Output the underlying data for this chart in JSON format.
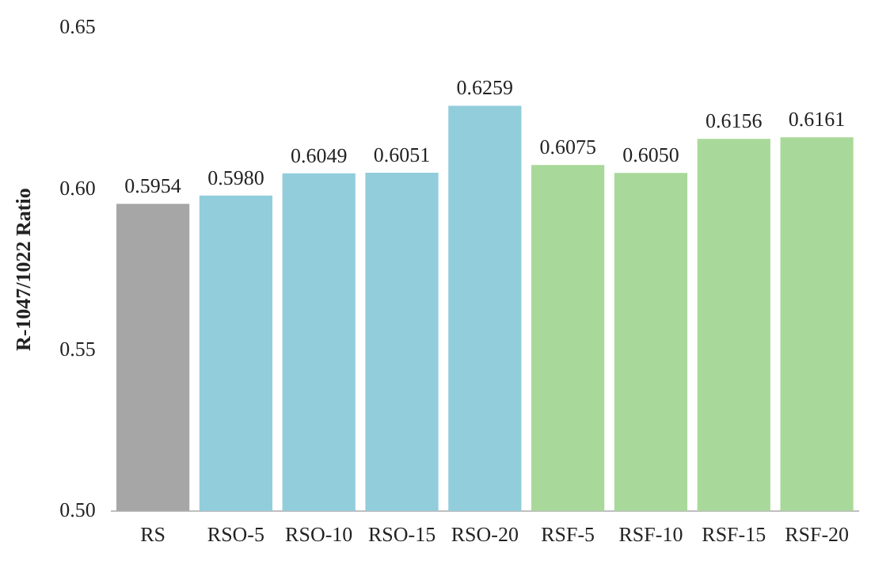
{
  "chart_data": {
    "type": "bar",
    "ylabel": "R-1047/1022 Ratio",
    "categories": [
      "RS",
      "RSO-5",
      "RSO-10",
      "RSO-15",
      "RSO-20",
      "RSF-5",
      "RSF-10",
      "RSF-15",
      "RSF-20"
    ],
    "values": [
      0.5954,
      0.598,
      0.6049,
      0.6051,
      0.6259,
      0.6075,
      0.605,
      0.6156,
      0.6161
    ],
    "value_labels": [
      "0.5954",
      "0.5980",
      "0.6049",
      "0.6051",
      "0.6259",
      "0.6075",
      "0.6050",
      "0.6156",
      "0.6161"
    ],
    "colors": [
      "#a6a6a6",
      "#92cddc",
      "#92cddc",
      "#92cddc",
      "#92cddc",
      "#a9d99a",
      "#a9d99a",
      "#a9d99a",
      "#a9d99a"
    ],
    "ylim": [
      0.5,
      0.65
    ],
    "yticks": [
      {
        "value": 0.5,
        "label": "0.50"
      },
      {
        "value": 0.55,
        "label": "0.55"
      },
      {
        "value": 0.6,
        "label": "0.60"
      },
      {
        "value": 0.65,
        "label": "0.65"
      }
    ],
    "grid": false,
    "legend": false
  }
}
